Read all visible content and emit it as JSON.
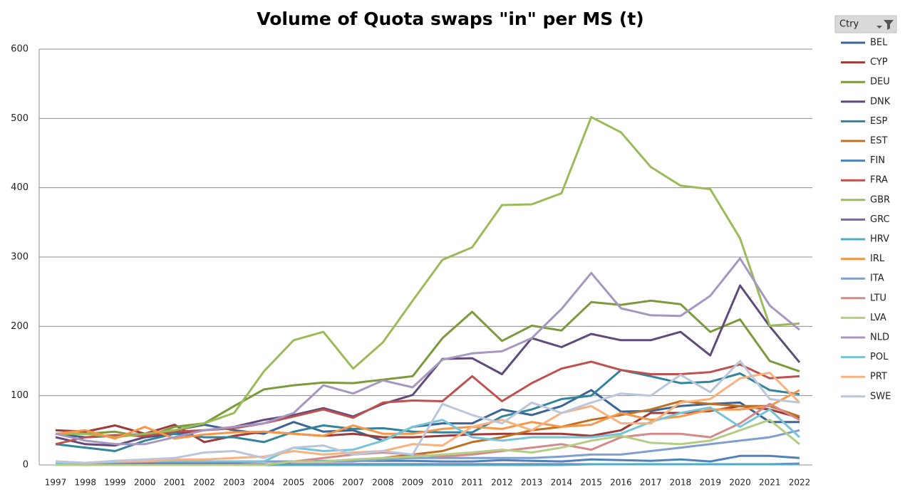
{
  "chart_data": {
    "type": "line",
    "title": "Volume of Quota swaps \"in\" per MS (t)",
    "legend_title": "Ctry",
    "legend": "right",
    "grid": true,
    "categories": [
      "1997",
      "1998",
      "1999",
      "2000",
      "2001",
      "2002",
      "2003",
      "2004",
      "2005",
      "2006",
      "2007",
      "2008",
      "2009",
      "2010",
      "2011",
      "2012",
      "2013",
      "2014",
      "2015",
      "2016",
      "2017",
      "2018",
      "2019",
      "2020",
      "2021",
      "2022"
    ],
    "ylim": [
      0,
      600
    ],
    "yticks": [
      0,
      100,
      200,
      300,
      400,
      500,
      600
    ],
    "series": [
      {
        "name": "BEL",
        "color": "#3c6496",
        "values": [
          45,
          40,
          42,
          45,
          50,
          58,
          50,
          45,
          62,
          48,
          50,
          35,
          55,
          60,
          60,
          80,
          72,
          85,
          108,
          77,
          78,
          85,
          88,
          90,
          62,
          62
        ]
      },
      {
        "name": "CYP",
        "color": "#9e3b38",
        "values": [
          50,
          48,
          57,
          45,
          58,
          33,
          42,
          48,
          45,
          42,
          45,
          40,
          40,
          42,
          44,
          45,
          45,
          45,
          42,
          50,
          75,
          75,
          78,
          85,
          80,
          68
        ]
      },
      {
        "name": "DEU",
        "color": "#7b9a3c",
        "values": [
          45,
          45,
          48,
          40,
          55,
          60,
          85,
          109,
          115,
          119,
          118,
          123,
          128,
          183,
          221,
          179,
          201,
          194,
          235,
          231,
          237,
          232,
          192,
          210,
          150,
          135
        ]
      },
      {
        "name": "DNK",
        "color": "#5f4a7b",
        "values": [
          40,
          30,
          28,
          40,
          45,
          50,
          55,
          65,
          72,
          82,
          70,
          88,
          101,
          153,
          154,
          131,
          183,
          170,
          189,
          180,
          180,
          192,
          158,
          259,
          200,
          148
        ]
      },
      {
        "name": "ESP",
        "color": "#31849b",
        "values": [
          30,
          25,
          20,
          35,
          45,
          40,
          40,
          33,
          48,
          57,
          52,
          53,
          48,
          47,
          47,
          70,
          80,
          95,
          100,
          137,
          128,
          118,
          120,
          132,
          108,
          102
        ]
      },
      {
        "name": "EST",
        "color": "#c0711f",
        "values": [
          0,
          0,
          0,
          0,
          0,
          0,
          0,
          0,
          5,
          5,
          5,
          10,
          15,
          20,
          33,
          40,
          50,
          55,
          65,
          72,
          80,
          92,
          88,
          85,
          85,
          70
        ]
      },
      {
        "name": "FIN",
        "color": "#4f81bd",
        "values": [
          2,
          2,
          2,
          3,
          3,
          4,
          4,
          5,
          5,
          6,
          6,
          6,
          6,
          5,
          5,
          7,
          6,
          5,
          8,
          7,
          6,
          8,
          5,
          13,
          13,
          10
        ]
      },
      {
        "name": "FRA",
        "color": "#c0504d",
        "values": [
          30,
          40,
          43,
          42,
          48,
          50,
          53,
          60,
          70,
          80,
          68,
          90,
          93,
          92,
          128,
          92,
          118,
          139,
          149,
          137,
          131,
          131,
          134,
          145,
          125,
          128
        ]
      },
      {
        "name": "GBR",
        "color": "#9bbb59",
        "values": [
          45,
          45,
          40,
          45,
          50,
          60,
          75,
          135,
          180,
          192,
          139,
          177,
          237,
          296,
          314,
          375,
          376,
          392,
          502,
          480,
          430,
          403,
          398,
          327,
          201,
          204
        ]
      },
      {
        "name": "GRC",
        "color": "#8064a2",
        "values": [
          1,
          1,
          1,
          1,
          1,
          1,
          1,
          1,
          1,
          1,
          1,
          1,
          1,
          1,
          1,
          1,
          1,
          1,
          1,
          1,
          1,
          1,
          1,
          1,
          1,
          2
        ]
      },
      {
        "name": "HRV",
        "color": "#4bacc6",
        "values": [
          0,
          0,
          0,
          0,
          0,
          0,
          0,
          0,
          0,
          0,
          0,
          0,
          0,
          0,
          0,
          0,
          0,
          0,
          1,
          1,
          1,
          1,
          1,
          1,
          1,
          1
        ]
      },
      {
        "name": "IRL",
        "color": "#f79646",
        "values": [
          45,
          50,
          38,
          55,
          38,
          44,
          47,
          48,
          45,
          42,
          57,
          45,
          45,
          52,
          55,
          52,
          62,
          55,
          58,
          75,
          65,
          70,
          80,
          80,
          85,
          108
        ]
      },
      {
        "name": "ITA",
        "color": "#7f9fcf",
        "values": [
          5,
          3,
          5,
          5,
          5,
          5,
          5,
          5,
          5,
          5,
          5,
          8,
          10,
          10,
          10,
          10,
          10,
          12,
          15,
          15,
          20,
          25,
          30,
          35,
          40,
          50
        ]
      },
      {
        "name": "LTU",
        "color": "#d48a88",
        "values": [
          0,
          0,
          0,
          0,
          0,
          0,
          0,
          0,
          5,
          10,
          15,
          18,
          15,
          12,
          15,
          20,
          25,
          30,
          22,
          40,
          45,
          45,
          40,
          60,
          88,
          65
        ]
      },
      {
        "name": "LVA",
        "color": "#b5cc85",
        "values": [
          0,
          0,
          0,
          0,
          0,
          0,
          0,
          0,
          5,
          5,
          8,
          10,
          12,
          15,
          18,
          22,
          18,
          25,
          35,
          42,
          32,
          30,
          35,
          50,
          65,
          30
        ]
      },
      {
        "name": "NLD",
        "color": "#a797c0",
        "values": [
          45,
          35,
          30,
          30,
          40,
          50,
          55,
          60,
          75,
          115,
          103,
          122,
          112,
          152,
          161,
          164,
          183,
          225,
          277,
          226,
          216,
          215,
          244,
          298,
          230,
          195
        ]
      },
      {
        "name": "POL",
        "color": "#76c4d8",
        "values": [
          3,
          3,
          4,
          5,
          5,
          5,
          5,
          5,
          25,
          20,
          22,
          35,
          55,
          65,
          40,
          35,
          40,
          40,
          40,
          45,
          62,
          75,
          83,
          55,
          80,
          40
        ]
      },
      {
        "name": "PRT",
        "color": "#f9b27e",
        "values": [
          5,
          3,
          5,
          5,
          8,
          8,
          10,
          12,
          20,
          15,
          18,
          20,
          30,
          28,
          55,
          65,
          50,
          75,
          85,
          60,
          60,
          90,
          95,
          125,
          133,
          90
        ]
      },
      {
        "name": "SWE",
        "color": "#b9c6dc",
        "values": [
          5,
          3,
          6,
          8,
          10,
          18,
          20,
          10,
          25,
          28,
          15,
          20,
          15,
          88,
          72,
          60,
          90,
          75,
          90,
          103,
          100,
          130,
          105,
          150,
          95,
          90
        ]
      }
    ]
  }
}
